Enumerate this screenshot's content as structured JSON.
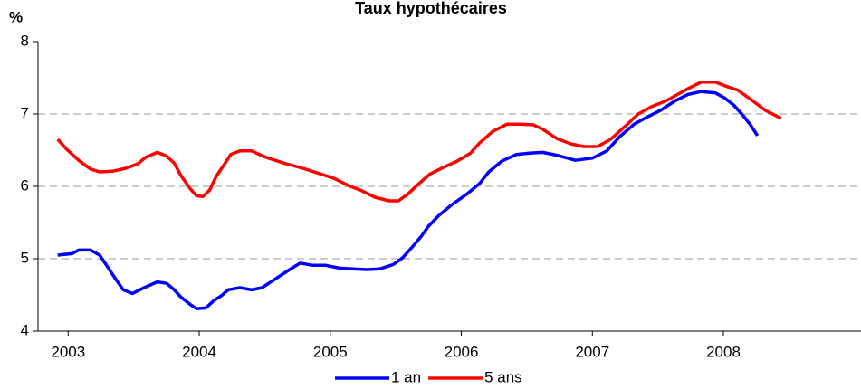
{
  "chart_data": {
    "type": "line",
    "title": "Taux hypothécaires",
    "y_label": "%",
    "xlim": [
      2002.77,
      2009.05
    ],
    "xticks": [
      2003,
      2004,
      2005,
      2006,
      2007,
      2008
    ],
    "ylim": [
      4,
      8
    ],
    "yticks": [
      4,
      5,
      6,
      7,
      8
    ],
    "grid": true,
    "legend": "bottom",
    "series": [
      {
        "name": "1 an",
        "color": "#0000ff",
        "x": [
          2002.92,
          2003.03,
          2003.08,
          2003.17,
          2003.24,
          2003.27,
          2003.37,
          2003.42,
          2003.49,
          2003.58,
          2003.68,
          2003.75,
          2003.81,
          2003.86,
          2003.93,
          2003.98,
          2004.05,
          2004.11,
          2004.17,
          2004.22,
          2004.31,
          2004.4,
          2004.48,
          2004.58,
          2004.69,
          2004.77,
          2004.86,
          2004.96,
          2005.07,
          2005.17,
          2005.28,
          2005.38,
          2005.48,
          2005.55,
          2005.62,
          2005.69,
          2005.75,
          2005.83,
          2005.93,
          2006.04,
          2006.14,
          2006.21,
          2006.31,
          2006.42,
          2006.52,
          2006.62,
          2006.73,
          2006.87,
          2007.0,
          2007.11,
          2007.21,
          2007.32,
          2007.41,
          2007.52,
          2007.63,
          2007.73,
          2007.83,
          2007.94,
          2008.01,
          2008.08,
          2008.15,
          2008.21,
          2008.26
        ],
        "values": [
          5.05,
          5.07,
          5.12,
          5.12,
          5.05,
          4.97,
          4.7,
          4.57,
          4.52,
          4.6,
          4.68,
          4.66,
          4.57,
          4.47,
          4.37,
          4.31,
          4.32,
          4.42,
          4.49,
          4.57,
          4.6,
          4.57,
          4.6,
          4.72,
          4.85,
          4.94,
          4.91,
          4.91,
          4.87,
          4.86,
          4.85,
          4.86,
          4.92,
          5.01,
          5.15,
          5.3,
          5.45,
          5.6,
          5.75,
          5.89,
          6.04,
          6.2,
          6.35,
          6.44,
          6.46,
          6.47,
          6.43,
          6.36,
          6.39,
          6.49,
          6.69,
          6.86,
          6.95,
          7.05,
          7.18,
          7.27,
          7.31,
          7.29,
          7.22,
          7.12,
          6.98,
          6.84,
          6.7
        ]
      },
      {
        "name": "5 ans",
        "color": "#ff0000",
        "x": [
          2002.92,
          2002.99,
          2003.08,
          2003.17,
          2003.24,
          2003.34,
          2003.44,
          2003.53,
          2003.59,
          2003.68,
          2003.75,
          2003.81,
          2003.86,
          2003.93,
          2003.98,
          2004.03,
          2004.08,
          2004.13,
          2004.19,
          2004.24,
          2004.31,
          2004.4,
          2004.51,
          2004.65,
          2004.79,
          2004.93,
          2005.03,
          2005.14,
          2005.24,
          2005.34,
          2005.45,
          2005.52,
          2005.59,
          2005.66,
          2005.76,
          2005.86,
          2005.97,
          2006.07,
          2006.14,
          2006.24,
          2006.35,
          2006.45,
          2006.55,
          2006.62,
          2006.73,
          2006.83,
          2006.93,
          2007.04,
          2007.14,
          2007.25,
          2007.35,
          2007.45,
          2007.56,
          2007.66,
          2007.73,
          2007.83,
          2007.94,
          2008.01,
          2008.11,
          2008.21,
          2008.32,
          2008.44
        ],
        "values": [
          6.65,
          6.51,
          6.36,
          6.24,
          6.2,
          6.21,
          6.25,
          6.31,
          6.4,
          6.47,
          6.42,
          6.32,
          6.15,
          5.97,
          5.87,
          5.86,
          5.95,
          6.14,
          6.3,
          6.44,
          6.49,
          6.49,
          6.4,
          6.32,
          6.25,
          6.17,
          6.11,
          6.01,
          5.94,
          5.85,
          5.8,
          5.8,
          5.89,
          6.01,
          6.17,
          6.26,
          6.35,
          6.46,
          6.6,
          6.76,
          6.86,
          6.86,
          6.85,
          6.79,
          6.66,
          6.59,
          6.55,
          6.55,
          6.65,
          6.83,
          7.0,
          7.1,
          7.18,
          7.28,
          7.35,
          7.44,
          7.44,
          7.39,
          7.33,
          7.2,
          7.05,
          6.94
        ]
      }
    ]
  }
}
